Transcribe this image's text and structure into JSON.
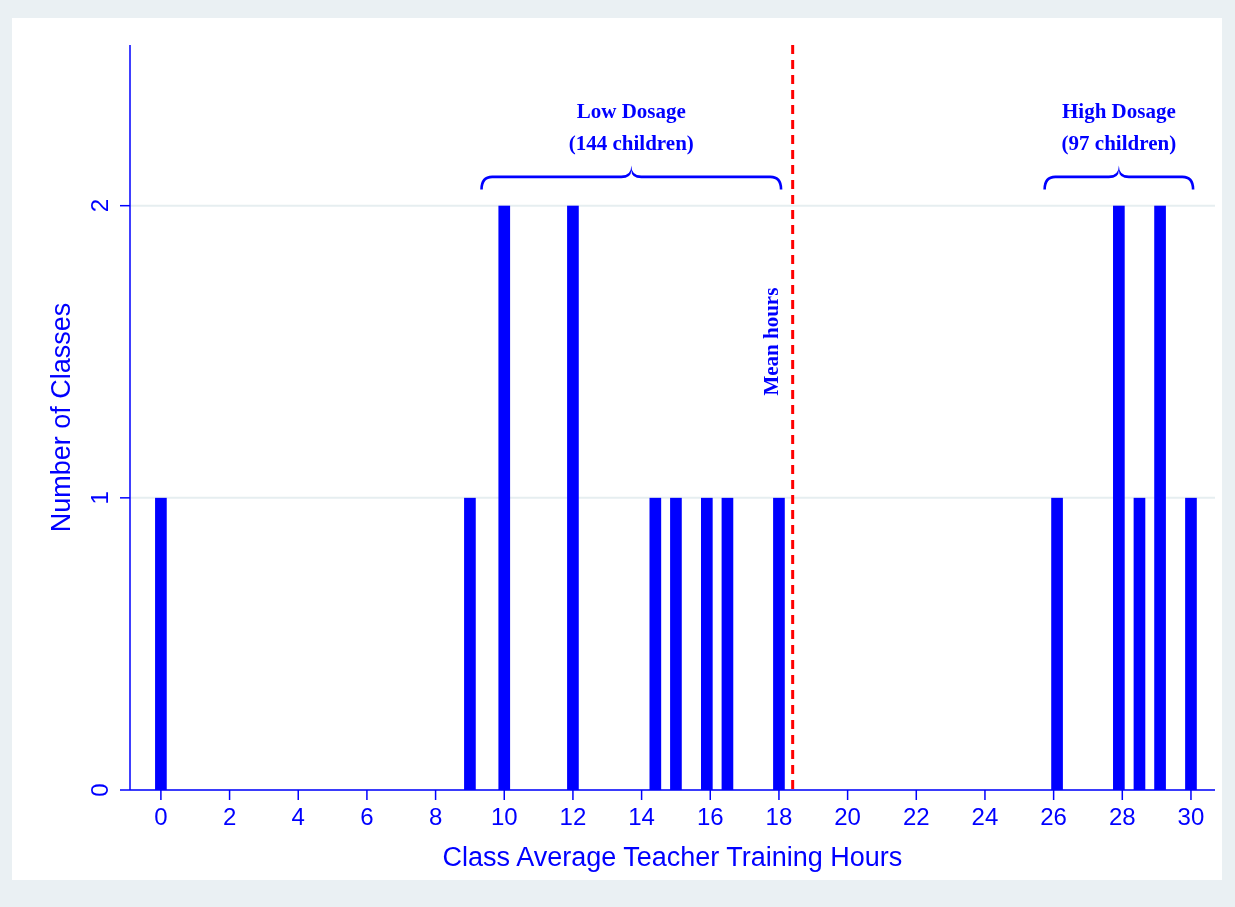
{
  "chart_data": {
    "type": "bar",
    "xlabel": "Class Average Teacher Training Hours",
    "ylabel": "Number of Classes",
    "x": [
      0,
      9,
      10,
      12,
      14.4,
      15,
      15.9,
      16.5,
      18,
      26.1,
      27.9,
      28.5,
      29.1,
      30
    ],
    "values": [
      1,
      1,
      2,
      2,
      1,
      1,
      1,
      1,
      1,
      1,
      2,
      1,
      2,
      1
    ],
    "color": "#0000ff",
    "xlim": [
      -0.9,
      30.7
    ],
    "xticks": [
      0,
      2,
      4,
      6,
      8,
      10,
      12,
      14,
      16,
      18,
      20,
      22,
      24,
      26,
      28,
      30
    ],
    "ylim": [
      0,
      2.55
    ],
    "yticks": [
      0,
      1,
      2
    ],
    "grid": "y",
    "ref_lines": [
      {
        "axis": "x",
        "value": 18.4,
        "label": "Mean hours",
        "color": "#ff0000",
        "line_style": "dashed"
      }
    ],
    "annotations": [
      "Low Dosage\n(144 children)",
      "High Dosage\n(97 children)"
    ]
  }
}
